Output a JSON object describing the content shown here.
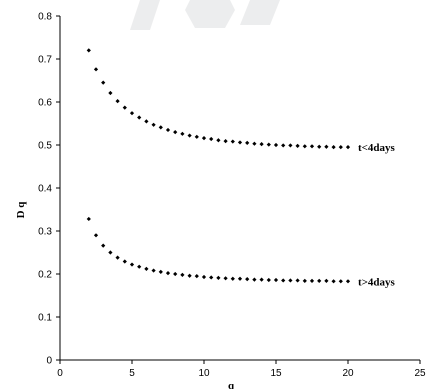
{
  "chart_data": {
    "type": "scatter",
    "title": "",
    "xlabel": "q",
    "ylabel": "D q",
    "xlim": [
      0,
      25
    ],
    "ylim": [
      0,
      0.8
    ],
    "x_ticks": [
      "0",
      "5",
      "10",
      "15",
      "20",
      "25"
    ],
    "y_ticks": [
      "0",
      "0.1",
      "0.2",
      "0.3",
      "0.4",
      "0.5",
      "0.6",
      "0.7",
      "0.8"
    ],
    "grid": false,
    "legend": "none",
    "marker_color": "#000000",
    "series": [
      {
        "name": "t<4days",
        "x": [
          2,
          2.5,
          3,
          3.5,
          4,
          4.5,
          5,
          5.5,
          6,
          6.5,
          7,
          7.5,
          8,
          8.5,
          9,
          9.5,
          10,
          10.5,
          11,
          11.5,
          12,
          12.5,
          13,
          13.5,
          14,
          14.5,
          15,
          15.5,
          16,
          16.5,
          17,
          17.5,
          18,
          18.5,
          19,
          19.5,
          20
        ],
        "y": [
          0.72,
          0.676,
          0.645,
          0.621,
          0.602,
          0.587,
          0.574,
          0.564,
          0.555,
          0.547,
          0.541,
          0.535,
          0.53,
          0.526,
          0.522,
          0.519,
          0.516,
          0.514,
          0.511,
          0.509,
          0.508,
          0.506,
          0.505,
          0.503,
          0.502,
          0.501,
          0.5,
          0.499,
          0.499,
          0.498,
          0.497,
          0.497,
          0.496,
          0.496,
          0.495,
          0.495,
          0.495
        ]
      },
      {
        "name": "t>4days",
        "x": [
          2,
          2.5,
          3,
          3.5,
          4,
          4.5,
          5,
          5.5,
          6,
          6.5,
          7,
          7.5,
          8,
          8.5,
          9,
          9.5,
          10,
          10.5,
          11,
          11.5,
          12,
          12.5,
          13,
          13.5,
          14,
          14.5,
          15,
          15.5,
          16,
          16.5,
          17,
          17.5,
          18,
          18.5,
          19,
          19.5,
          20
        ],
        "y": [
          0.328,
          0.29,
          0.266,
          0.25,
          0.238,
          0.229,
          0.222,
          0.217,
          0.212,
          0.208,
          0.205,
          0.202,
          0.2,
          0.198,
          0.196,
          0.195,
          0.193,
          0.192,
          0.191,
          0.19,
          0.189,
          0.189,
          0.188,
          0.187,
          0.187,
          0.186,
          0.186,
          0.185,
          0.185,
          0.185,
          0.184,
          0.184,
          0.184,
          0.184,
          0.183,
          0.183,
          0.183
        ]
      }
    ]
  }
}
